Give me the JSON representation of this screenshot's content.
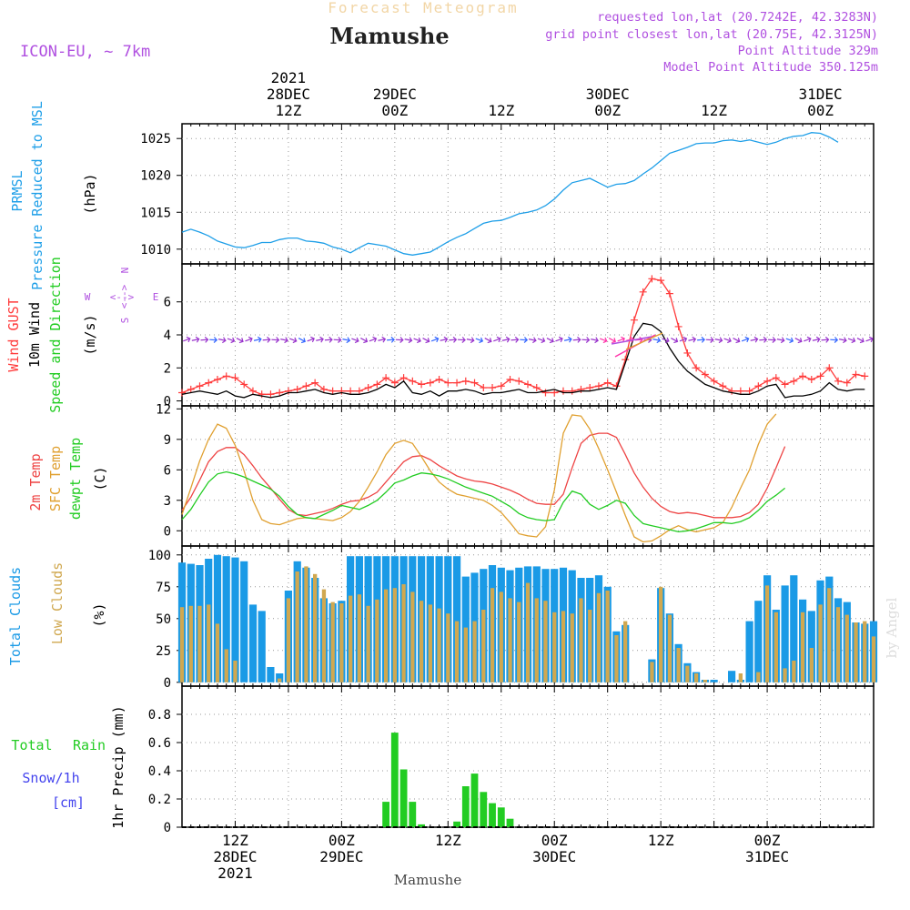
{
  "header": {
    "title_top": "Forecast Meteogram",
    "location": "Mamushe",
    "model": "ICON-EU, ~ 7km",
    "requested": "requested lon,lat (20.7242E, 42.3283N)",
    "grid_point": "grid point closest lon,lat (20.75E, 42.3125N)",
    "point_alt": "Point Altitude 329m",
    "model_alt": "Model Point Altitude 350.125m",
    "watermark": "by Angel",
    "footer_location": "Mamushe"
  },
  "colors": {
    "pressure": "#1f9fe8",
    "gust": "#ff3b3b",
    "wind": "#000000",
    "dir_label": "#22cc22",
    "temp2m": "#ee4444",
    "sfc": "#e0a030",
    "dewpt": "#22cc22",
    "total_clouds": "#1a9ae6",
    "low_clouds": "#d0a850",
    "rain": "#22cc22",
    "snow": "#4444ee",
    "purple": "#b050e0"
  },
  "time_axis": {
    "hours": 78,
    "top_labels": [
      {
        "h": 12,
        "lines": [
          "2021",
          "28DEC",
          "12Z"
        ]
      },
      {
        "h": 24,
        "lines": [
          "29DEC",
          "00Z"
        ]
      },
      {
        "h": 36,
        "lines": [
          "12Z"
        ]
      },
      {
        "h": 48,
        "lines": [
          "30DEC",
          "00Z"
        ]
      },
      {
        "h": 60,
        "lines": [
          "12Z"
        ]
      },
      {
        "h": 72,
        "lines": [
          "31DEC",
          "00Z"
        ]
      }
    ],
    "bottom_labels": [
      {
        "h": 6,
        "lines": [
          "12Z",
          "28DEC",
          "2021"
        ]
      },
      {
        "h": 18,
        "lines": [
          "00Z",
          "29DEC"
        ]
      },
      {
        "h": 30,
        "lines": [
          "12Z"
        ]
      },
      {
        "h": 42,
        "lines": [
          "00Z",
          "30DEC"
        ]
      },
      {
        "h": 54,
        "lines": [
          "12Z"
        ]
      },
      {
        "h": 66,
        "lines": [
          "00Z",
          "31DEC"
        ]
      }
    ]
  },
  "chart_data": [
    {
      "type": "line",
      "name": "pressure",
      "title_lines": [
        "PRMSL",
        "Pressure Reduced to MSL"
      ],
      "ylabel": "(hPa)",
      "ylim": [
        1008,
        1027
      ],
      "ticks": [
        1010,
        1015,
        1020,
        1025
      ],
      "series": [
        {
          "name": "PRMSL",
          "color": "pressure",
          "values": [
            1012.3,
            1012.7,
            1012.3,
            1011.8,
            1011.1,
            1010.7,
            1010.3,
            1010.2,
            1010.5,
            1010.9,
            1010.9,
            1011.3,
            1011.5,
            1011.5,
            1011.1,
            1011.0,
            1010.8,
            1010.3,
            1010.0,
            1009.5,
            1010.2,
            1010.8,
            1010.6,
            1010.4,
            1009.9,
            1009.4,
            1009.2,
            1009.4,
            1009.6,
            1010.3,
            1011.0,
            1011.6,
            1012.1,
            1012.8,
            1013.5,
            1013.8,
            1013.9,
            1014.3,
            1014.8,
            1015.0,
            1015.3,
            1015.9,
            1016.8,
            1018.0,
            1019.0,
            1019.3,
            1019.6,
            1019.0,
            1018.4,
            1018.8,
            1018.9,
            1019.3,
            1020.2,
            1021.0,
            1022.0,
            1023.0,
            1023.4,
            1023.8,
            1024.3,
            1024.4,
            1024.4,
            1024.7,
            1024.8,
            1024.6,
            1024.8,
            1024.5,
            1024.2,
            1024.5,
            1025.0,
            1025.3,
            1025.4,
            1025.8,
            1025.7,
            1025.2,
            1024.5
          ]
        }
      ]
    },
    {
      "type": "line",
      "name": "wind",
      "title_lines": [
        "Wind GUST",
        "10m Wind",
        "Speed and Direction"
      ],
      "ylabel": "(m/s)",
      "compass": [
        "N",
        "W",
        "E",
        "S"
      ],
      "ylim": [
        -0.3,
        8.3
      ],
      "ticks": [
        0,
        2,
        4,
        6
      ],
      "series": [
        {
          "name": "Wind GUST",
          "color": "gust",
          "values": [
            0.5,
            0.7,
            0.9,
            1.1,
            1.3,
            1.5,
            1.4,
            1.0,
            0.6,
            0.4,
            0.4,
            0.5,
            0.6,
            0.7,
            0.9,
            1.1,
            0.7,
            0.6,
            0.6,
            0.6,
            0.6,
            0.8,
            1.0,
            1.4,
            1.1,
            1.4,
            1.2,
            1.0,
            1.1,
            1.3,
            1.1,
            1.1,
            1.2,
            1.1,
            0.8,
            0.8,
            0.9,
            1.3,
            1.2,
            1.0,
            0.8,
            0.5,
            0.5,
            0.6,
            0.6,
            0.7,
            0.8,
            0.9,
            1.1,
            0.9,
            2.5,
            4.9,
            6.6,
            7.4,
            7.3,
            6.5,
            4.5,
            2.9,
            2.0,
            1.6,
            1.2,
            0.9,
            0.6,
            0.6,
            0.6,
            0.9,
            1.2,
            1.4,
            1.0,
            1.2,
            1.5,
            1.3,
            1.5,
            2.0,
            1.2,
            1.1,
            1.6,
            1.5
          ]
        },
        {
          "name": "10m Wind",
          "color": "wind",
          "values": [
            0.4,
            0.5,
            0.6,
            0.5,
            0.4,
            0.6,
            0.3,
            0.2,
            0.4,
            0.3,
            0.2,
            0.3,
            0.5,
            0.5,
            0.6,
            0.7,
            0.5,
            0.4,
            0.5,
            0.4,
            0.4,
            0.5,
            0.7,
            1.0,
            0.8,
            1.2,
            0.5,
            0.4,
            0.6,
            0.3,
            0.6,
            0.6,
            0.7,
            0.6,
            0.4,
            0.5,
            0.5,
            0.6,
            0.7,
            0.5,
            0.5,
            0.6,
            0.7,
            0.5,
            0.5,
            0.6,
            0.6,
            0.7,
            0.8,
            0.7,
            2.3,
            3.9,
            4.7,
            4.6,
            4.2,
            3.2,
            2.4,
            1.8,
            1.4,
            1.0,
            0.8,
            0.6,
            0.5,
            0.4,
            0.4,
            0.6,
            0.9,
            1.0,
            0.2,
            0.3,
            0.3,
            0.4,
            0.6,
            1.1,
            0.7,
            0.6,
            0.7,
            0.7
          ]
        }
      ]
    },
    {
      "type": "line",
      "name": "temperature",
      "title_lines": [
        "2m Temp",
        "SFC Temp",
        "dewpt Temp"
      ],
      "ylabel": "(C)",
      "ylim": [
        -1.5,
        12.3
      ],
      "ticks": [
        0,
        3,
        6,
        9,
        12
      ],
      "series": [
        {
          "name": "2m Temp",
          "color": "temp2m",
          "values": [
            2.0,
            3.3,
            5.0,
            6.8,
            7.8,
            8.2,
            8.2,
            7.5,
            6.4,
            5.2,
            4.2,
            3.1,
            2.1,
            1.6,
            1.5,
            1.7,
            1.9,
            2.2,
            2.6,
            2.9,
            3.0,
            3.3,
            3.8,
            4.8,
            5.8,
            6.8,
            7.3,
            7.4,
            7.0,
            6.4,
            5.9,
            5.4,
            5.1,
            4.9,
            4.8,
            4.6,
            4.3,
            4.0,
            3.6,
            3.1,
            2.7,
            2.6,
            2.6,
            3.6,
            6.2,
            8.6,
            9.4,
            9.6,
            9.6,
            9.2,
            7.5,
            5.7,
            4.3,
            3.2,
            2.4,
            1.9,
            1.7,
            1.8,
            1.7,
            1.5,
            1.3,
            1.3,
            1.3,
            1.4,
            1.8,
            2.6,
            4.2,
            6.2,
            8.3
          ]
        },
        {
          "name": "SFC Temp",
          "color": "sfc",
          "values": [
            1.6,
            4.2,
            6.9,
            9.0,
            10.5,
            10.1,
            8.4,
            5.9,
            3.0,
            1.1,
            0.7,
            0.6,
            0.9,
            1.2,
            1.3,
            1.2,
            1.1,
            1.0,
            1.3,
            1.9,
            2.9,
            4.3,
            5.8,
            7.5,
            8.6,
            8.9,
            8.6,
            7.3,
            5.9,
            4.8,
            4.1,
            3.6,
            3.4,
            3.2,
            3.0,
            2.5,
            1.8,
            0.8,
            -0.3,
            -0.5,
            -0.6,
            0.4,
            4.0,
            9.6,
            11.4,
            11.3,
            10.0,
            8.1,
            6.0,
            3.8,
            1.5,
            -0.6,
            -1.1,
            -1.0,
            -0.5,
            0.1,
            0.5,
            0.1,
            -0.1,
            0.1,
            0.3,
            0.8,
            2.3,
            4.2,
            6.0,
            8.5,
            10.5,
            11.5
          ]
        },
        {
          "name": "dewpt Temp",
          "color": "dewpt",
          "values": [
            1.1,
            2.1,
            3.5,
            4.8,
            5.6,
            5.8,
            5.6,
            5.3,
            4.9,
            4.5,
            4.1,
            3.4,
            2.4,
            1.6,
            1.3,
            1.2,
            1.6,
            2.0,
            2.5,
            2.3,
            2.1,
            2.5,
            3.0,
            3.8,
            4.7,
            5.0,
            5.4,
            5.7,
            5.6,
            5.4,
            5.1,
            4.7,
            4.3,
            4.0,
            3.7,
            3.4,
            2.9,
            2.4,
            1.7,
            1.3,
            1.1,
            1.0,
            1.1,
            2.8,
            3.9,
            3.6,
            2.6,
            2.1,
            2.5,
            3.0,
            2.7,
            1.5,
            0.7,
            0.5,
            0.3,
            0.1,
            -0.1,
            0.0,
            0.2,
            0.5,
            0.8,
            0.8,
            0.7,
            0.9,
            1.3,
            2.0,
            2.9,
            3.5,
            4.2
          ]
        }
      ]
    },
    {
      "type": "bar",
      "name": "clouds",
      "title_lines": [
        "Total Clouds",
        "Low Clouds"
      ],
      "ylabel": "(%)",
      "ylim": [
        -3,
        107
      ],
      "ticks": [
        0,
        25,
        50,
        75,
        100
      ],
      "series": [
        {
          "name": "Total Clouds",
          "color": "total_clouds",
          "values": [
            94,
            93,
            92,
            97,
            100,
            99,
            98,
            95,
            61,
            56,
            12,
            7,
            72,
            95,
            90,
            82,
            66,
            62,
            64,
            99,
            99,
            99,
            99,
            99,
            99,
            99,
            99,
            99,
            99,
            99,
            99,
            99,
            83,
            86,
            89,
            92,
            90,
            88,
            90,
            91,
            91,
            89,
            89,
            90,
            88,
            82,
            82,
            84,
            75,
            40,
            45,
            0,
            0,
            18,
            74,
            54,
            30,
            15,
            8,
            2,
            2,
            0,
            9,
            2,
            48,
            64,
            84,
            57,
            76,
            84,
            65,
            56,
            80,
            83,
            66,
            63,
            47,
            46,
            48
          ]
        },
        {
          "name": "Low Clouds",
          "color": "low_clouds",
          "values": [
            59,
            60,
            60,
            61,
            46,
            26,
            17,
            0,
            0,
            0,
            0,
            3,
            66,
            87,
            91,
            85,
            73,
            63,
            62,
            68,
            69,
            60,
            65,
            73,
            74,
            77,
            71,
            64,
            61,
            58,
            54,
            48,
            43,
            48,
            57,
            74,
            71,
            66,
            63,
            78,
            66,
            64,
            55,
            56,
            54,
            66,
            57,
            70,
            72,
            37,
            48,
            0,
            0,
            16,
            75,
            53,
            27,
            13,
            7,
            2,
            0,
            0,
            0,
            7,
            0,
            8,
            76,
            55,
            11,
            17,
            55,
            27,
            61,
            74,
            59,
            53,
            47,
            48,
            36
          ]
        }
      ]
    },
    {
      "type": "bar",
      "name": "precip",
      "title_lines": [
        "Total",
        "Rain",
        "Snow/1h",
        "[cm]",
        "1hr Precip (mm)"
      ],
      "ylim": [
        0,
        1.0
      ],
      "ticks": [
        0,
        0.2,
        0.4,
        0.6,
        0.8
      ],
      "ticklabels": [
        "0",
        "0.2",
        "0.4",
        "0.6",
        "0.8"
      ],
      "series": [
        {
          "name": "Total Rain",
          "color": "rain",
          "values": [
            0,
            0,
            0,
            0,
            0,
            0,
            0,
            0,
            0,
            0,
            0,
            0,
            0,
            0,
            0,
            0,
            0,
            0,
            0,
            0,
            0,
            0,
            0,
            0.18,
            0.67,
            0.41,
            0.18,
            0.02,
            0,
            0,
            0,
            0.04,
            0.29,
            0.38,
            0.25,
            0.17,
            0.14,
            0.06,
            0,
            0,
            0,
            0,
            0,
            0,
            0,
            0,
            0,
            0,
            0,
            0,
            0,
            0,
            0,
            0,
            0,
            0,
            0,
            0,
            0,
            0,
            0,
            0,
            0,
            0,
            0,
            0,
            0,
            0,
            0,
            0,
            0,
            0,
            0,
            0,
            0,
            0,
            0,
            0
          ]
        }
      ]
    }
  ]
}
